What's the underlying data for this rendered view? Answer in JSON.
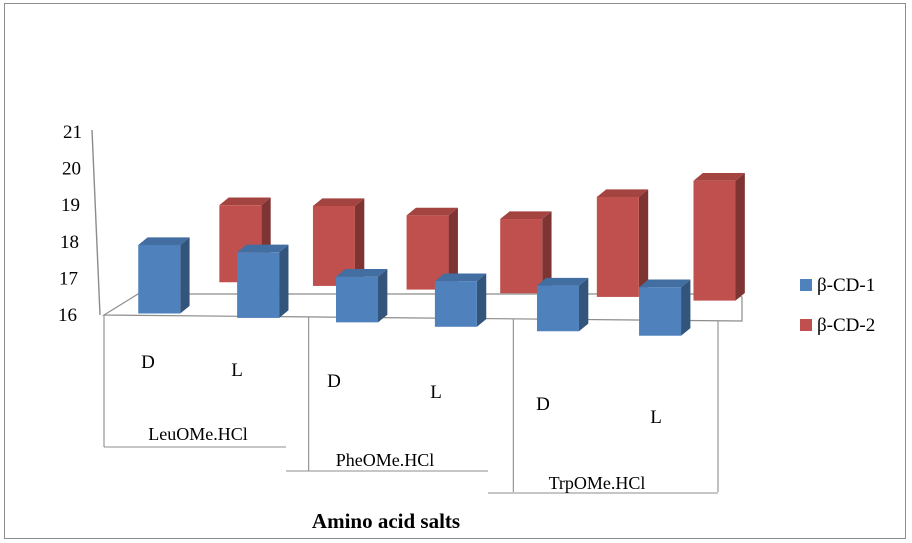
{
  "chart_data": {
    "type": "bar",
    "title": "",
    "xlabel": "Amino acid salts",
    "ylabel": "",
    "ylim": [
      16,
      21
    ],
    "yticks": [
      16,
      17,
      18,
      19,
      20,
      21
    ],
    "groups": [
      {
        "label": "LeuOMe.HCl",
        "categories": [
          "D",
          "L"
        ]
      },
      {
        "label": "PheOMe.HCl",
        "categories": [
          "D",
          "L"
        ]
      },
      {
        "label": "TrpOMe.HCl",
        "categories": [
          "D",
          "L"
        ]
      }
    ],
    "categories": [
      "D",
      "L",
      "D",
      "L",
      "D",
      "L"
    ],
    "series": [
      {
        "name": "β-CD-1",
        "color": "#4f81bd",
        "values": [
          18.4,
          18.3,
          17.6,
          17.6,
          17.6,
          17.7
        ]
      },
      {
        "name": "β-CD-2",
        "color": "#c0504d",
        "values": [
          18.7,
          18.8,
          18.6,
          18.6,
          19.5,
          20.2
        ]
      }
    ],
    "legend": "right",
    "grid": false,
    "projection": "3d"
  }
}
